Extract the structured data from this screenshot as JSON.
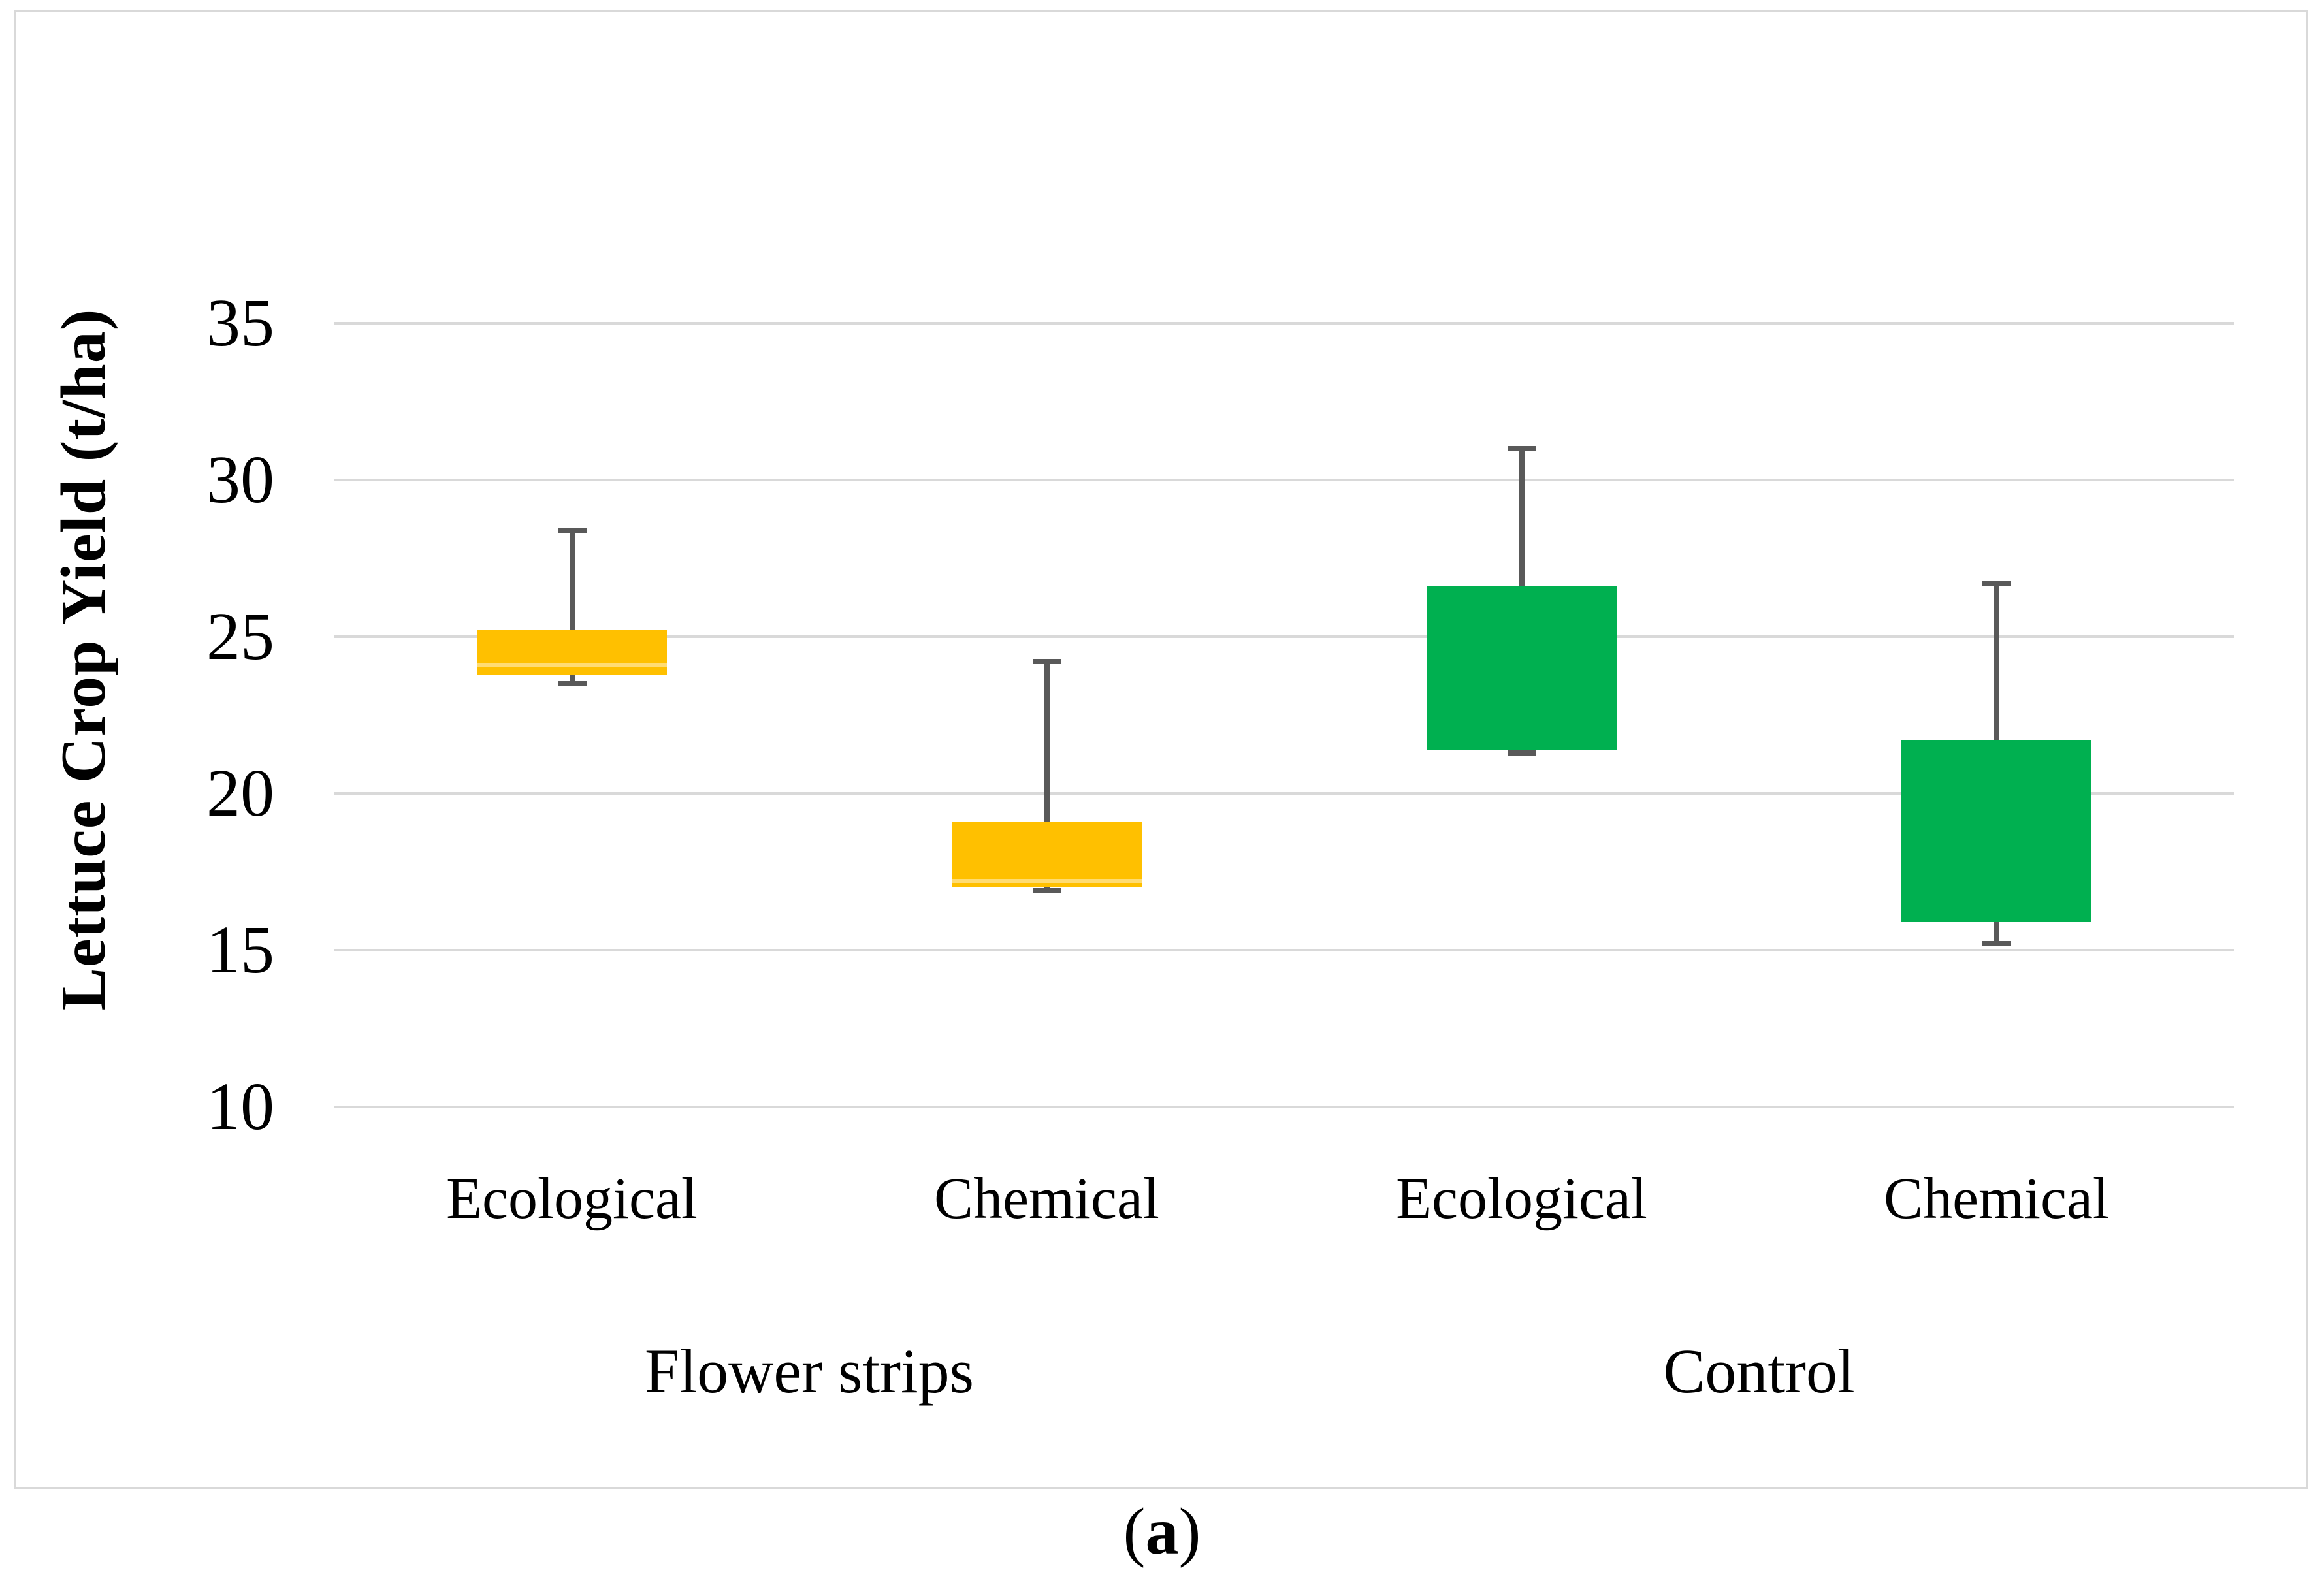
{
  "figure": {
    "caption": {
      "open": "(",
      "letter": "a",
      "close": ")"
    }
  },
  "chart_data": {
    "type": "boxplot",
    "title": "",
    "ylabel": "Lettuce Crop Yield (t/ha)",
    "xlabel": "",
    "ylim": [
      10,
      35
    ],
    "y_ticks": [
      35,
      30,
      25,
      20,
      15,
      10
    ],
    "grid": true,
    "legend": "none",
    "colors": {
      "flower_strips_fill": "#FFC000",
      "control_fill": "#00B050",
      "whisker": "#595959",
      "gridline": "#D9D9D9",
      "frame_border": "#D9D9D9",
      "text": "#000000"
    },
    "groups": [
      {
        "label": "Flower strips",
        "categories": [
          "Ecological",
          "Chemical"
        ]
      },
      {
        "label": "Control",
        "categories": [
          "Ecological",
          "Chemical"
        ]
      }
    ],
    "boxes": [
      {
        "group": "Flower strips",
        "category": "Ecological",
        "color": "#FFC000",
        "whisker_low": 23.5,
        "q1": 23.8,
        "median": 24.1,
        "q3": 25.2,
        "whisker_high": 28.4
      },
      {
        "group": "Flower strips",
        "category": "Chemical",
        "color": "#FFC000",
        "whisker_low": 16.9,
        "q1": 17.0,
        "median": 17.2,
        "q3": 19.1,
        "whisker_high": 24.2
      },
      {
        "group": "Control",
        "category": "Ecological",
        "color": "#00B050",
        "whisker_low": 21.3,
        "q1": 21.4,
        "median": 21.4,
        "q3": 26.6,
        "whisker_high": 31.0
      },
      {
        "group": "Control",
        "category": "Chemical",
        "color": "#00B050",
        "whisker_low": 15.2,
        "q1": 15.9,
        "median": 15.9,
        "q3": 21.7,
        "whisker_high": 26.7
      }
    ]
  }
}
